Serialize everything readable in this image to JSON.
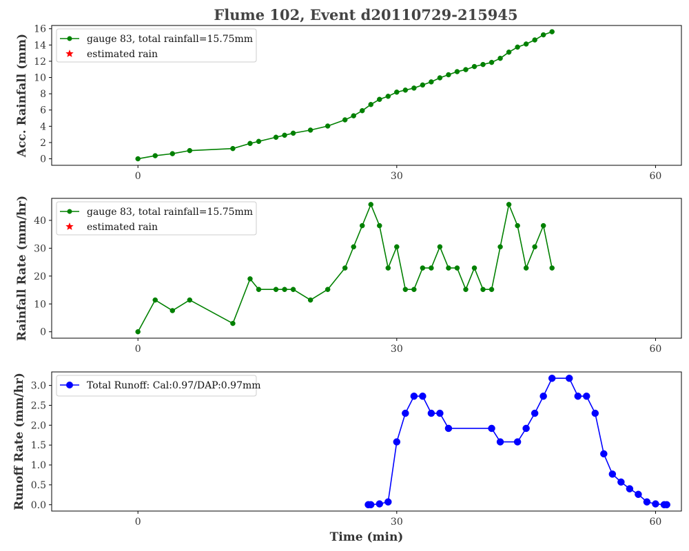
{
  "figure": {
    "title": "Flume 102, Event d20110729-215945"
  },
  "chart_data": [
    {
      "type": "line",
      "ylabel": "Acc. Rainfall (mm)",
      "xlabel": "",
      "xlim": [
        -10,
        63
      ],
      "ylim": [
        -0.8,
        16.4
      ],
      "xticks": [
        0,
        30,
        60
      ],
      "yticks": [
        0,
        2,
        4,
        6,
        8,
        10,
        12,
        14,
        16
      ],
      "grid": false,
      "legend_position": "top-left",
      "legend": [
        {
          "label": "gauge 83, total rainfall=15.75mm",
          "color": "#008000",
          "marker": "circle-line"
        },
        {
          "label": "estimated rain",
          "color": "#ff0000",
          "marker": "star"
        }
      ],
      "series": [
        {
          "name": "gauge 83, total rainfall=15.75mm",
          "color": "#008000",
          "marker_size": 3.5,
          "x": [
            0,
            2,
            4,
            6,
            11,
            13,
            14,
            16,
            17,
            18,
            20,
            22,
            24,
            25,
            26,
            27,
            28,
            29,
            30,
            31,
            32,
            33,
            34,
            35,
            36,
            37,
            38,
            39,
            40,
            41,
            42,
            43,
            44,
            45,
            46,
            47,
            48
          ],
          "y": [
            0,
            0.38,
            0.63,
            1.01,
            1.26,
            1.89,
            2.14,
            2.65,
            2.9,
            3.15,
            3.53,
            4.03,
            4.79,
            5.29,
            5.92,
            6.68,
            7.31,
            7.69,
            8.2,
            8.45,
            8.7,
            9.08,
            9.46,
            9.96,
            10.34,
            10.72,
            10.97,
            11.35,
            11.6,
            11.86,
            12.36,
            13.12,
            13.74,
            14.12,
            14.62,
            15.25,
            15.63
          ]
        }
      ]
    },
    {
      "type": "line",
      "ylabel": "Rainfall Rate (mm/hr)",
      "xlabel": "",
      "xlim": [
        -10,
        63
      ],
      "ylim": [
        -2.3,
        47.9
      ],
      "xticks": [
        0,
        30,
        60
      ],
      "yticks": [
        0,
        10,
        20,
        30,
        40
      ],
      "grid": false,
      "legend_position": "top-left",
      "legend": [
        {
          "label": "gauge 83, total rainfall=15.75mm",
          "color": "#008000",
          "marker": "circle-line"
        },
        {
          "label": "estimated rain",
          "color": "#ff0000",
          "marker": "star"
        }
      ],
      "series": [
        {
          "name": "gauge 83, total rainfall=15.75mm",
          "color": "#008000",
          "marker_size": 3.5,
          "x": [
            0,
            2,
            4,
            6,
            11,
            13,
            14,
            16,
            17,
            18,
            20,
            22,
            24,
            25,
            26,
            27,
            28,
            29,
            30,
            31,
            32,
            33,
            34,
            35,
            36,
            37,
            38,
            39,
            40,
            41,
            42,
            43,
            44,
            45,
            46,
            47,
            48
          ],
          "y": [
            0,
            11.4,
            7.6,
            11.4,
            3.0,
            19.0,
            15.2,
            15.2,
            15.2,
            15.2,
            11.4,
            15.2,
            22.9,
            30.5,
            38.1,
            45.7,
            38.1,
            22.9,
            30.5,
            15.2,
            15.2,
            22.9,
            22.9,
            30.5,
            22.9,
            22.9,
            15.2,
            22.9,
            15.2,
            15.2,
            30.5,
            45.7,
            38.1,
            22.9,
            30.5,
            38.1,
            22.9
          ]
        }
      ]
    },
    {
      "type": "line",
      "ylabel": "Runoff Rate (mm/hr)",
      "xlabel": "Time (min)",
      "xlim": [
        -10,
        63
      ],
      "ylim": [
        -0.16,
        3.34
      ],
      "xticks": [
        0,
        30,
        60
      ],
      "yticks": [
        0.0,
        0.5,
        1.0,
        1.5,
        2.0,
        2.5,
        3.0
      ],
      "grid": false,
      "legend_position": "top-left",
      "legend": [
        {
          "label": "Total Runoff: Cal:0.97/DAP:0.97mm",
          "color": "#0000ff",
          "marker": "circle-line"
        }
      ],
      "series": [
        {
          "name": "Total Runoff: Cal:0.97/DAP:0.97mm",
          "color": "#0000ff",
          "marker_size": 5,
          "x": [
            26.7,
            27,
            28,
            29,
            30,
            31,
            32,
            33,
            34,
            35,
            36,
            41,
            42,
            44,
            45,
            46,
            47,
            48,
            50,
            51,
            52,
            53,
            54,
            55,
            56,
            57,
            58,
            59,
            60,
            61,
            61.3
          ],
          "y": [
            0,
            0,
            0.02,
            0.07,
            1.58,
            2.3,
            2.73,
            2.73,
            2.3,
            2.3,
            1.92,
            1.92,
            1.58,
            1.58,
            1.92,
            2.3,
            2.73,
            3.18,
            3.18,
            2.73,
            2.73,
            2.3,
            1.28,
            0.77,
            0.57,
            0.4,
            0.26,
            0.07,
            0.02,
            0,
            0
          ]
        }
      ]
    }
  ]
}
